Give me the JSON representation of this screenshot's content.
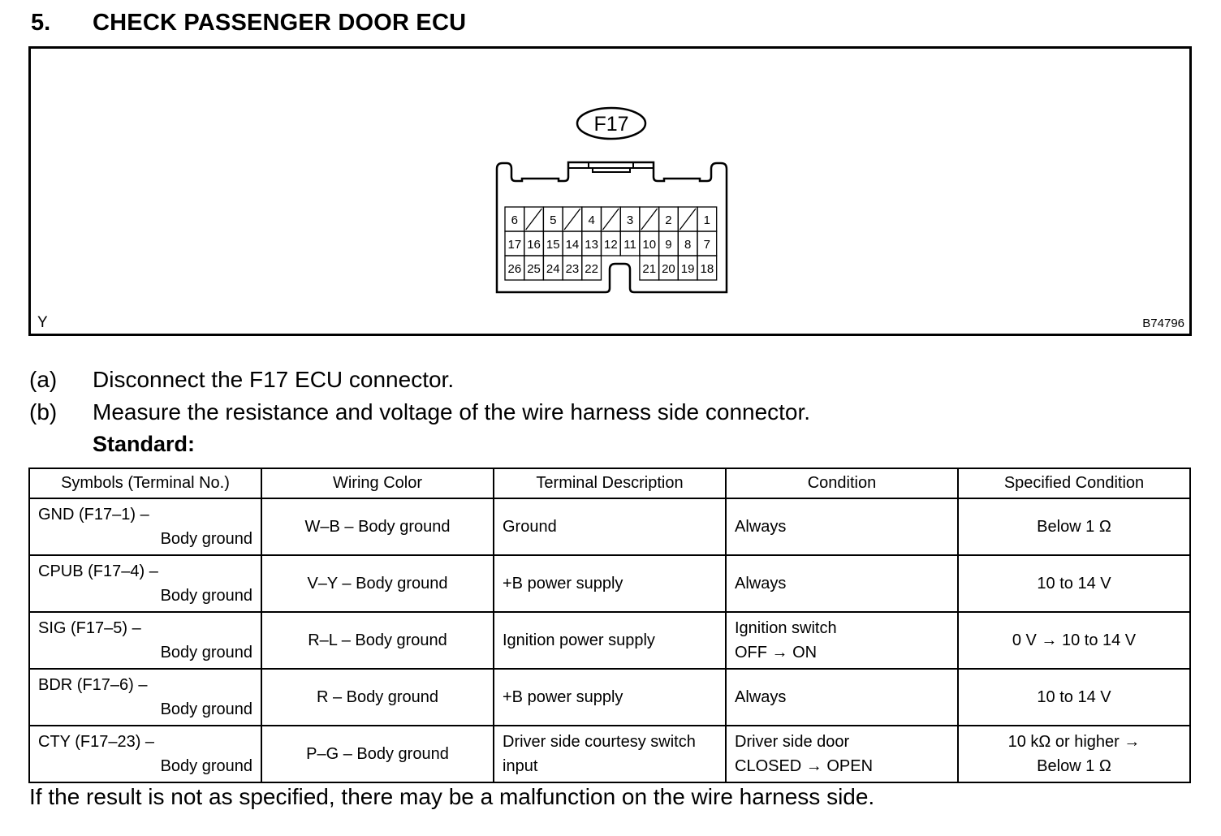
{
  "heading": {
    "number": "5.",
    "title": "CHECK PASSENGER DOOR ECU"
  },
  "figure": {
    "connector_label": "F17",
    "corner_label": "Y",
    "figure_code": "B74796",
    "pin_rows": [
      [
        "6",
        "/",
        "5",
        "/",
        "4",
        "/",
        "3",
        "/",
        "2",
        "/",
        "1"
      ],
      [
        "17",
        "16",
        "15",
        "14",
        "13",
        "12",
        "11",
        "10",
        "9",
        "8",
        "7"
      ],
      [
        "26",
        "25",
        "24",
        "23",
        "22",
        "",
        "",
        "21",
        "20",
        "19",
        "18"
      ]
    ]
  },
  "steps": [
    {
      "label": "(a)",
      "text": "Disconnect the F17 ECU connector."
    },
    {
      "label": "(b)",
      "text": "Measure the resistance and voltage of the wire harness side connector."
    }
  ],
  "standard_label": "Standard:",
  "table": {
    "headers": [
      "Symbols (Terminal No.)",
      "Wiring Color",
      "Terminal Description",
      "Condition",
      "Specified Condition"
    ],
    "rows": [
      {
        "symbol": "GND (F17–1) –",
        "symbol2": "Body ground",
        "wiring": "W–B – Body ground",
        "desc": "Ground",
        "desc2": "",
        "cond": "Always",
        "cond2": "",
        "spec": "Below 1 Ω",
        "spec2": ""
      },
      {
        "symbol": "CPUB (F17–4) –",
        "symbol2": "Body ground",
        "wiring": "V–Y – Body ground",
        "desc": "+B power supply",
        "desc2": "",
        "cond": "Always",
        "cond2": "",
        "spec": "10 to 14 V",
        "spec2": ""
      },
      {
        "symbol": "SIG (F17–5) –",
        "symbol2": "Body ground",
        "wiring": "R–L – Body ground",
        "desc": "Ignition power supply",
        "desc2": "",
        "cond": "Ignition switch",
        "cond2": "OFF → ON",
        "spec": "0 V → 10 to 14 V",
        "spec2": ""
      },
      {
        "symbol": "BDR (F17–6) –",
        "symbol2": "Body ground",
        "wiring": "R – Body ground",
        "desc": "+B power supply",
        "desc2": "",
        "cond": "Always",
        "cond2": "",
        "spec": "10 to 14 V",
        "spec2": ""
      },
      {
        "symbol": "CTY (F17–23) –",
        "symbol2": "Body ground",
        "wiring": "P–G – Body ground",
        "desc": "Driver side courtesy switch",
        "desc2": "input",
        "cond": "Driver side door",
        "cond2": "CLOSED → OPEN",
        "spec": "10 kΩ or higher →",
        "spec2": "Below 1 Ω"
      }
    ]
  },
  "footer": "If the result is not as specified, there may be a malfunction on the wire harness side."
}
